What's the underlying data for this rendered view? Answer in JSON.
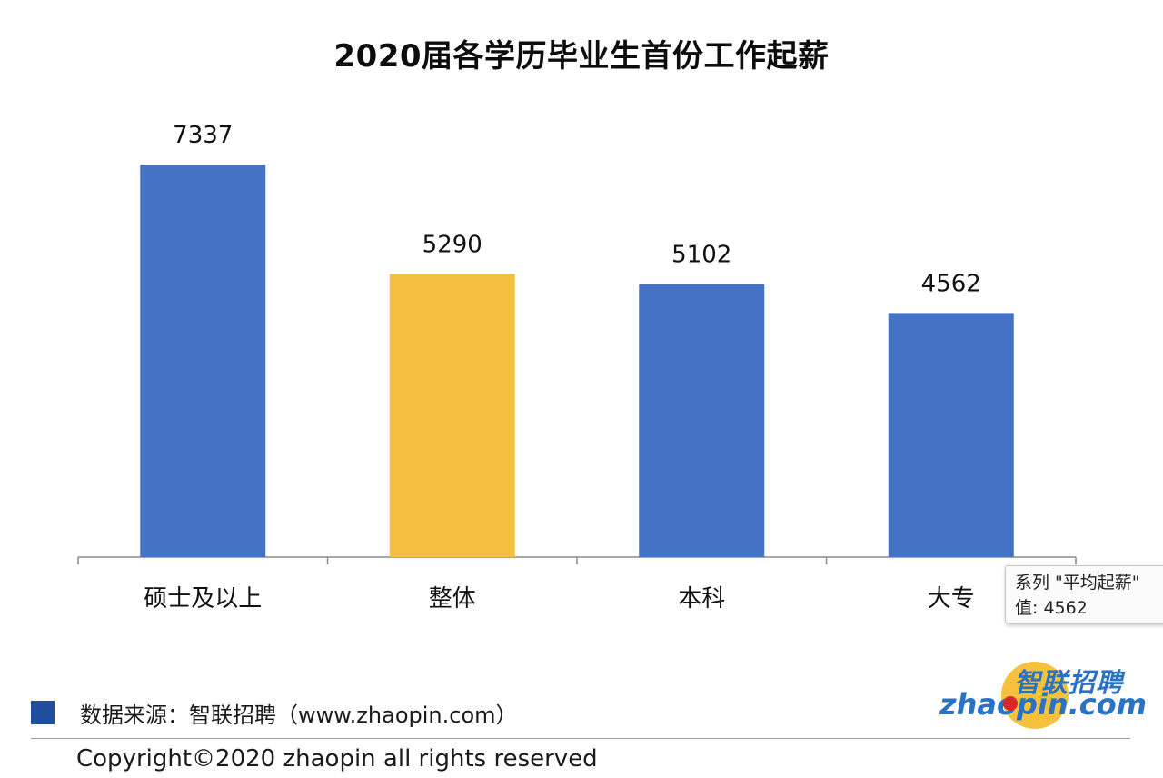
{
  "chart_data": {
    "type": "bar",
    "title": "2020届各学历毕业生首份工作起薪",
    "categories": [
      "硕士及以上",
      "整体",
      "本科",
      "大专"
    ],
    "values": [
      7337,
      5290,
      5102,
      4562
    ],
    "value_labels": [
      "7337",
      "5290",
      "5102",
      "4562"
    ],
    "colors": [
      "#4472c4",
      "#f4bf3f",
      "#4472c4",
      "#4472c4"
    ],
    "xlabel": "",
    "ylabel": "",
    "ylim": [
      0,
      7337
    ],
    "grid": false,
    "legend": "bottom-left"
  },
  "tooltip": {
    "series_line": "系列 \"平均起薪\"",
    "value_line": "值: 4562"
  },
  "source": {
    "text": "数据来源：智联招聘（www.zhaopin.com）",
    "swatch_color": "#1f4e9c"
  },
  "copyright": "Copyright©2020 zhaopin all rights reserved",
  "logo": {
    "cn": "智联招聘",
    "en": "zhaopin.com"
  }
}
